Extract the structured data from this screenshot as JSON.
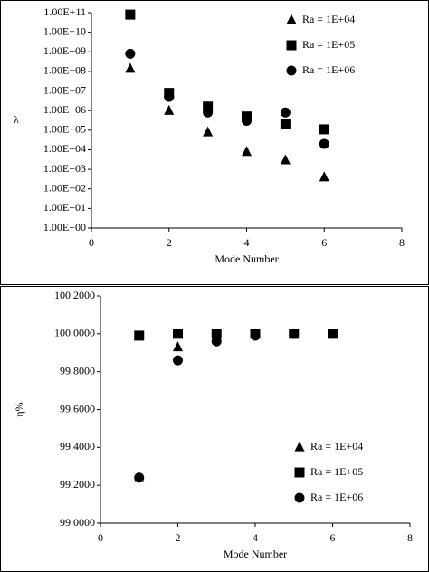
{
  "chart_data": [
    {
      "type": "scatter",
      "ylabel": "λ",
      "xlabel": "Mode Number",
      "log_y": true,
      "legend": "upper right",
      "x": [
        1,
        2,
        3,
        4,
        5,
        6
      ],
      "xlim": [
        0,
        8
      ],
      "xticks": [
        0,
        2,
        4,
        6,
        8
      ],
      "ylim": [
        1,
        100000000000
      ],
      "yticks": [
        {
          "value": 1,
          "label": "1.00E+00"
        },
        {
          "value": 10,
          "label": "1.00E+01"
        },
        {
          "value": 100,
          "label": "1.00E+02"
        },
        {
          "value": 1000,
          "label": "1.00E+03"
        },
        {
          "value": 10000,
          "label": "1.00E+04"
        },
        {
          "value": 100000,
          "label": "1.00E+05"
        },
        {
          "value": 1000000,
          "label": "1.00E+06"
        },
        {
          "value": 10000000,
          "label": "1.00E+07"
        },
        {
          "value": 100000000,
          "label": "1.00E+08"
        },
        {
          "value": 1000000000,
          "label": "1.00E+09"
        },
        {
          "value": 10000000000,
          "label": "1.00E+10"
        },
        {
          "value": 100000000000,
          "label": "1.00E+11"
        }
      ],
      "series": [
        {
          "name": "Ra = 1E+04",
          "marker": "triangle",
          "color": "#000000",
          "values": [
            140000000,
            1000000,
            80000,
            8000,
            3000,
            400
          ]
        },
        {
          "name": "Ra = 1E+05",
          "marker": "square",
          "color": "#000000",
          "values": [
            80000000000,
            8000000,
            1600000,
            500000,
            200000,
            110000
          ]
        },
        {
          "name": "Ra = 1E+06",
          "marker": "circle",
          "color": "#000000",
          "values": [
            800000000,
            5000000,
            800000,
            300000,
            800000,
            20000
          ]
        }
      ]
    },
    {
      "type": "scatter",
      "ylabel": "η%",
      "xlabel": "Mode Number",
      "log_y": false,
      "legend": "lower right",
      "x": [
        1,
        2,
        3,
        4,
        5,
        6
      ],
      "xlim": [
        0,
        8
      ],
      "xticks": [
        0,
        2,
        4,
        6,
        8
      ],
      "ylim": [
        99.0,
        100.2
      ],
      "yticks": [
        {
          "value": 99.0,
          "label": "99.0000"
        },
        {
          "value": 99.2,
          "label": "99.2000"
        },
        {
          "value": 99.4,
          "label": "99.4000"
        },
        {
          "value": 99.6,
          "label": "99.6000"
        },
        {
          "value": 99.8,
          "label": "99.8000"
        },
        {
          "value": 100.0,
          "label": "100.0000"
        },
        {
          "value": 100.2,
          "label": "100.2000"
        }
      ],
      "series": [
        {
          "name": "Ra = 1E+04",
          "marker": "triangle",
          "color": "#000000",
          "values": [
            99.24,
            99.93,
            99.985,
            100.0,
            100.0,
            100.0
          ]
        },
        {
          "name": "Ra = 1E+05",
          "marker": "square",
          "color": "#000000",
          "values": [
            99.99,
            100.0,
            100.0,
            100.0,
            100.0,
            100.0
          ]
        },
        {
          "name": "Ra = 1E+06",
          "marker": "circle",
          "color": "#000000",
          "values": [
            99.24,
            99.86,
            99.96,
            99.99,
            100.0,
            100.0
          ]
        }
      ]
    }
  ]
}
